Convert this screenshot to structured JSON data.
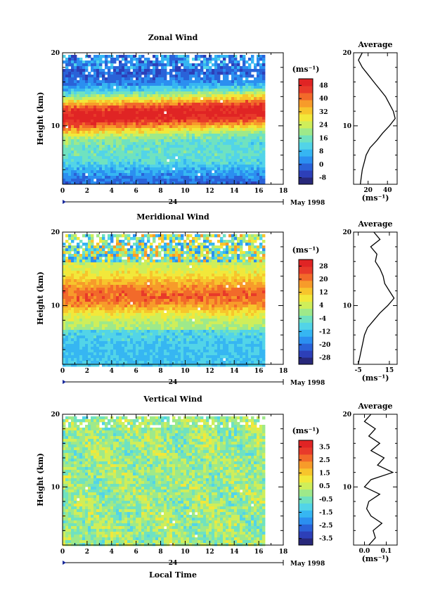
{
  "figure": {
    "xlabel": "Local Time",
    "ylabel": "Height (km)",
    "date_label": "May 1998",
    "day_marker": "24",
    "unit_label": "(ms⁻¹)",
    "x_ticks": [
      "0",
      "2",
      "4",
      "6",
      "8",
      "10",
      "12",
      "14",
      "16",
      "18"
    ],
    "y_ticks": [
      "10",
      "20"
    ],
    "average_title": "Average"
  },
  "colors": {
    "scale": [
      "#28287a",
      "#2d3fb8",
      "#2a62d8",
      "#2b8ff0",
      "#36b6f2",
      "#52d4e8",
      "#6fe2c0",
      "#9ee98a",
      "#cfee5a",
      "#f2e83a",
      "#f7c52c",
      "#f79b2a",
      "#f26a2a",
      "#e83a2a",
      "#e02424"
    ]
  },
  "chart_data": [
    {
      "type": "heatmap",
      "title": "Zonal Wind",
      "ylabel": "Height (km)",
      "xlim": [
        0,
        18
      ],
      "ylim": [
        2,
        20
      ],
      "data_extent_hours": 16.3,
      "colorbar": {
        "unit": "(ms⁻¹)",
        "ticks": [
          "48",
          "40",
          "32",
          "24",
          "16",
          "8",
          "0",
          "-8"
        ],
        "range": [
          -8,
          48
        ]
      },
      "profile": {
        "title": "Average",
        "xlabel": "(ms⁻¹)",
        "xticks": [
          "20",
          "40"
        ],
        "xlim": [
          5,
          50
        ],
        "heights": [
          2,
          3,
          4,
          5,
          6,
          7,
          8,
          9,
          10,
          11,
          12,
          13,
          14,
          15,
          16,
          17,
          18,
          19,
          20
        ],
        "values": [
          12,
          13,
          14,
          16,
          18,
          22,
          29,
          35,
          42,
          48,
          46,
          42,
          38,
          32,
          26,
          20,
          14,
          10,
          14
        ]
      }
    },
    {
      "type": "heatmap",
      "title": "Meridional Wind",
      "ylabel": "Height (km)",
      "xlim": [
        0,
        18
      ],
      "ylim": [
        2,
        20
      ],
      "data_extent_hours": 16.3,
      "colorbar": {
        "unit": "(ms⁻¹)",
        "ticks": [
          "28",
          "20",
          "12",
          "4",
          "-4",
          "-12",
          "-20",
          "-28"
        ],
        "range": [
          -28,
          28
        ]
      },
      "profile": {
        "title": "Average",
        "xlabel": "(ms⁻¹)",
        "xticks": [
          "-5",
          "15"
        ],
        "xlim": [
          -8,
          20
        ],
        "heights": [
          2,
          3,
          4,
          5,
          6,
          7,
          8,
          9,
          10,
          11,
          12,
          13,
          14,
          15,
          16,
          17,
          18,
          19,
          20
        ],
        "values": [
          -5,
          -4,
          -3,
          -2,
          -1,
          1,
          5,
          9,
          14,
          18,
          15,
          12,
          11,
          9,
          6,
          7,
          3,
          9,
          5
        ]
      }
    },
    {
      "type": "heatmap",
      "title": "Vertical Wind",
      "ylabel": "Height (km)",
      "xlabel": "Local Time",
      "xlim": [
        0,
        18
      ],
      "ylim": [
        2,
        20
      ],
      "data_extent_hours": 16.3,
      "colorbar": {
        "unit": "(ms⁻¹)",
        "ticks": [
          "3.5",
          "2.5",
          "1.5",
          "0.5",
          "-0.5",
          "-1.5",
          "-2.5",
          "-3.5"
        ],
        "range": [
          -4,
          4
        ]
      },
      "profile": {
        "title": "Average",
        "xlabel": "(ms⁻¹)",
        "xticks": [
          "0.0",
          "0.1"
        ],
        "xlim": [
          -0.05,
          0.15
        ],
        "heights": [
          2,
          3,
          4,
          5,
          6,
          7,
          8,
          9,
          10,
          11,
          12,
          13,
          14,
          15,
          16,
          17,
          18,
          19,
          20
        ],
        "values": [
          0.02,
          0.05,
          0.04,
          0.08,
          0.03,
          0.01,
          0.02,
          0.07,
          0.0,
          0.03,
          0.13,
          0.06,
          0.09,
          0.03,
          0.07,
          0.02,
          0.05,
          0.0,
          0.03
        ]
      }
    }
  ]
}
